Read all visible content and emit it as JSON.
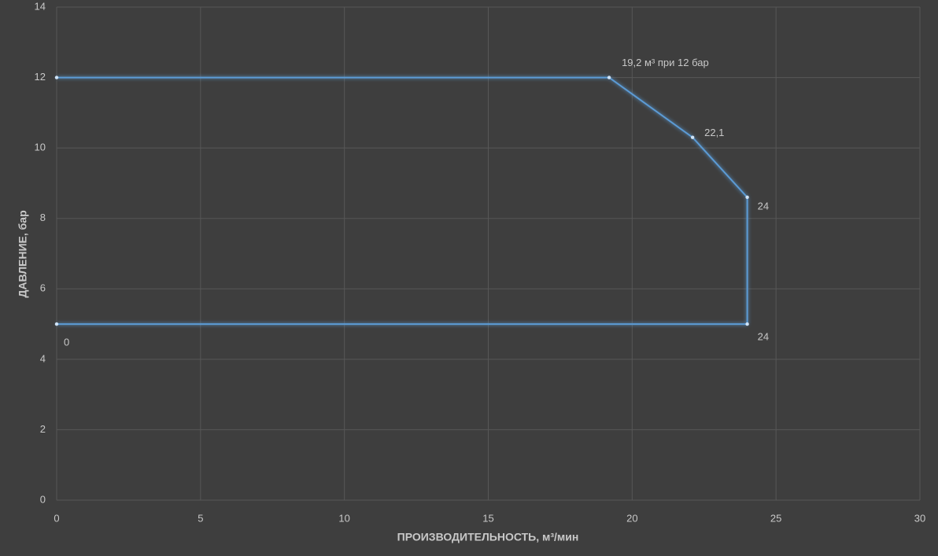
{
  "chart_data": {
    "type": "line",
    "x_label": "ПРОИЗВОДИТЕЛЬНОСТЬ, м³/мин",
    "y_label": "ДАВЛЕНИЕ, бар",
    "series": [
      {
        "color": "#5b9bd5",
        "x": [
          0,
          24,
          24,
          22.1,
          19.2,
          0
        ],
        "values": [
          5,
          5,
          8.6,
          10.3,
          12,
          12
        ],
        "point_labels": [
          "0",
          "24",
          "24",
          "22,1",
          "19,2 м³ при 12 бар",
          null
        ]
      }
    ],
    "xlim": [
      0,
      30
    ],
    "xticks": [
      0,
      5,
      10,
      15,
      20,
      25,
      30
    ],
    "ylim": [
      0,
      14
    ],
    "yticks": [
      0,
      2,
      4,
      6,
      8,
      10,
      12,
      14
    ],
    "grid": true
  }
}
